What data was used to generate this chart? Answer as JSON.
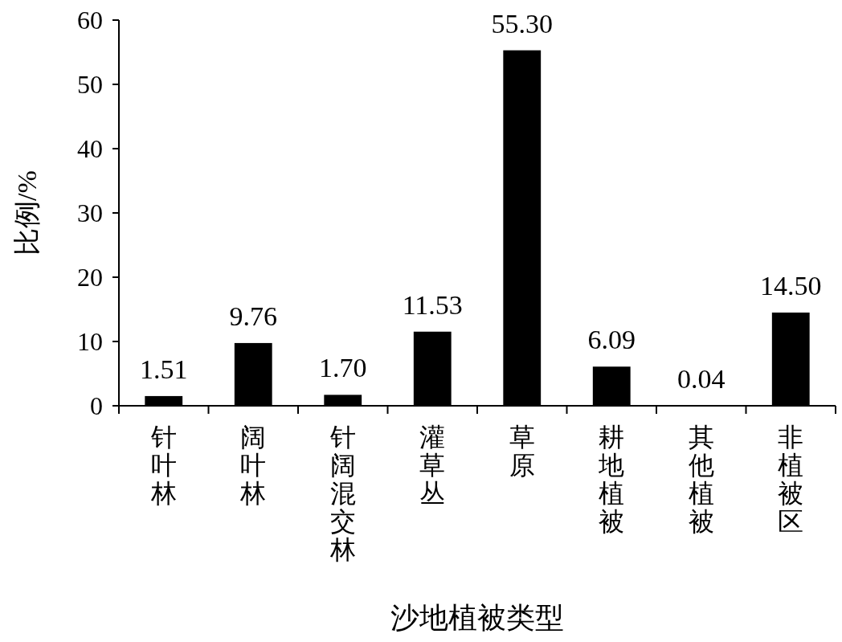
{
  "chart_data": {
    "type": "bar",
    "xlabel": "沙地植被类型",
    "ylabel": "比例/%",
    "categories": [
      "针叶林",
      "阔叶林",
      "针阔混交林",
      "灌草丛",
      "草原",
      "耕地植被",
      "其他植被",
      "非植被区"
    ],
    "values": [
      1.51,
      9.76,
      1.7,
      11.53,
      55.3,
      6.09,
      0.04,
      14.5
    ],
    "value_labels": [
      "1.51",
      "9.76",
      "1.70",
      "11.53",
      "55.30",
      "6.09",
      "0.04",
      "14.50"
    ],
    "color": "#000000",
    "ylim": [
      0,
      60
    ],
    "yticks": [
      0,
      10,
      20,
      30,
      40,
      50,
      60
    ],
    "grid": false
  }
}
